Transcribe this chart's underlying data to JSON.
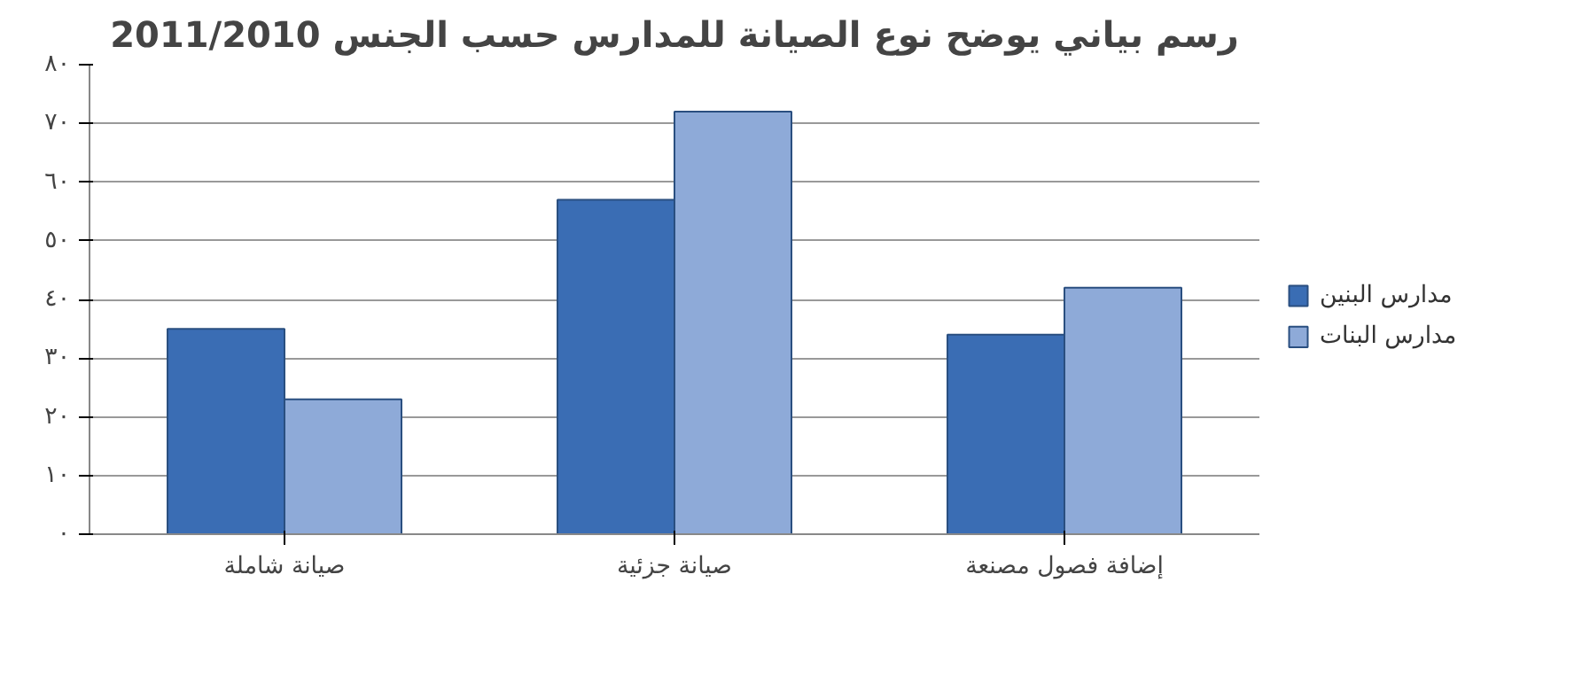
{
  "chart_data": {
    "type": "bar",
    "title": "رسم بياني يوضح نوع الصيانة للمدارس حسب الجنس 2011/2010",
    "categories": [
      "صيانة شاملة",
      "صيانة جزئية",
      "إضافة فصول مصنعة"
    ],
    "series": [
      {
        "name": "مدارس البنين",
        "color": "#3a6db4",
        "values": [
          35,
          57,
          34
        ]
      },
      {
        "name": "مدارس البنات",
        "color": "#8eaad8",
        "values": [
          23,
          72,
          42
        ]
      }
    ],
    "ylim": [
      0,
      80
    ],
    "yticks": [
      {
        "value": 0,
        "label": "٠"
      },
      {
        "value": 10,
        "label": "١٠"
      },
      {
        "value": 20,
        "label": "٢٠"
      },
      {
        "value": 30,
        "label": "٣٠"
      },
      {
        "value": 40,
        "label": "٤٠"
      },
      {
        "value": 50,
        "label": "٥٠"
      },
      {
        "value": 60,
        "label": "٦٠"
      },
      {
        "value": 70,
        "label": "٧٠"
      },
      {
        "value": 80,
        "label": "٨٠"
      }
    ],
    "grid": "y",
    "legend": "right"
  }
}
